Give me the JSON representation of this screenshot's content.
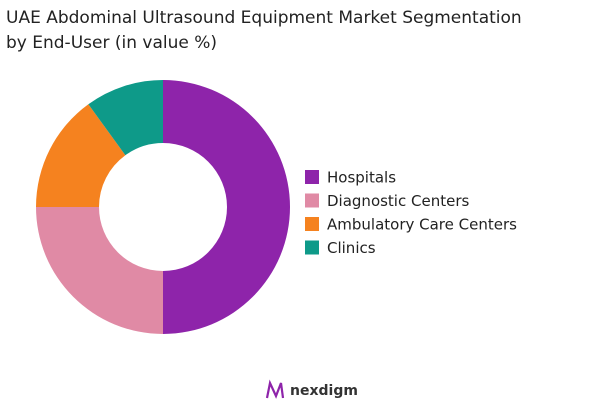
{
  "chart_data": {
    "type": "donut",
    "title": [
      "UAE Abdominal Ultrasound Equipment Market Segmentation",
      "by End-User (in value %)"
    ],
    "categories": [
      "Hospitals",
      "Diagnostic Centers",
      "Ambulatory Care Centers",
      "Clinics"
    ],
    "values": [
      50,
      25,
      15,
      10
    ],
    "colors": [
      "#8e24aa",
      "#e08aa5",
      "#f5821f",
      "#0e9a89"
    ],
    "legend": "right"
  },
  "brand": "nexdigm"
}
